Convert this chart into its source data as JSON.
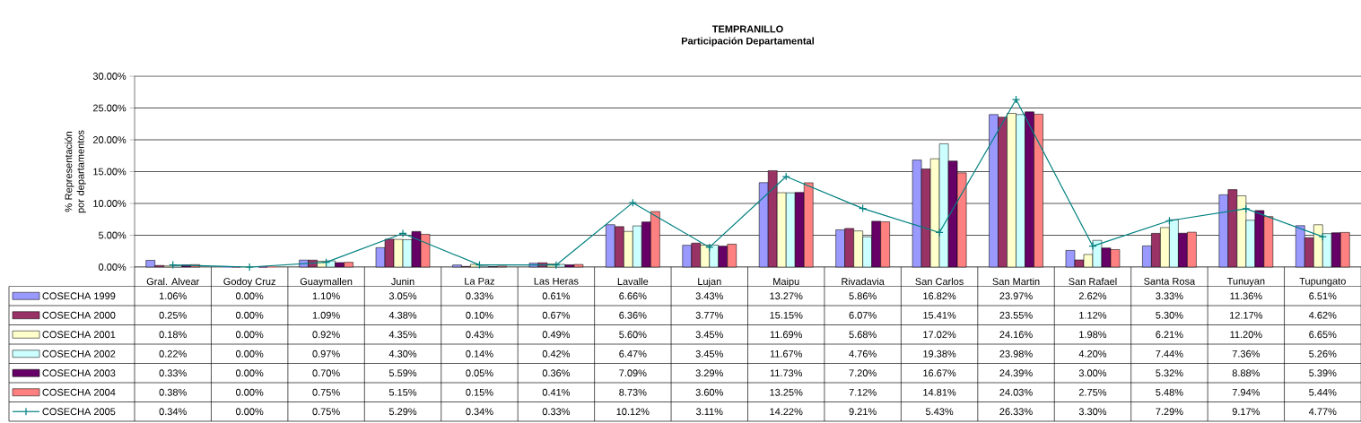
{
  "chart_data": {
    "type": "bar",
    "title": "TEMPRANILLO",
    "subtitle": "Participación Departamental",
    "ylabel": "% Representación por departamentos",
    "categories": [
      "Gral. Alvear",
      "Godoy Cruz",
      "Guaymallen",
      "Junin",
      "La Paz",
      "Las Heras",
      "Lavalle",
      "Lujan",
      "Maipu",
      "Rivadavia",
      "San Carlos",
      "San Martin",
      "San Rafael",
      "Santa Rosa",
      "Tunuyan",
      "Tupungato"
    ],
    "ylim": [
      0,
      30
    ],
    "yticks": [
      {
        "value": 0,
        "label": "0.00%"
      },
      {
        "value": 5,
        "label": "5.00%"
      },
      {
        "value": 10,
        "label": "10.00%"
      },
      {
        "value": 15,
        "label": "15.00%"
      },
      {
        "value": 20,
        "label": "20.00%"
      },
      {
        "value": 25,
        "label": "25.00%"
      },
      {
        "value": 30,
        "label": "30.00%"
      }
    ],
    "grid": "y",
    "legend": "bottom left",
    "series": [
      {
        "name": "COSECHA 1999",
        "color": "#9999ff",
        "values": [
          1.06,
          0.0,
          1.1,
          3.05,
          0.33,
          0.61,
          6.66,
          3.43,
          13.27,
          5.86,
          16.82,
          23.97,
          2.62,
          3.33,
          11.36,
          6.51
        ],
        "value_labels": [
          "1.06%",
          "0.00%",
          "1.10%",
          "3.05%",
          "0.33%",
          "0.61%",
          "6.66%",
          "3.43%",
          "13.27%",
          "5.86%",
          "16.82%",
          "23.97%",
          "2.62%",
          "3.33%",
          "11.36%",
          "6.51%"
        ]
      },
      {
        "name": "COSECHA 2000",
        "color": "#993366",
        "values": [
          0.25,
          0.0,
          1.09,
          4.38,
          0.1,
          0.67,
          6.36,
          3.77,
          15.15,
          6.07,
          15.41,
          23.55,
          1.12,
          5.3,
          12.17,
          4.62
        ],
        "value_labels": [
          "0.25%",
          "0.00%",
          "1.09%",
          "4.38%",
          "0.10%",
          "0.67%",
          "6.36%",
          "3.77%",
          "15.15%",
          "6.07%",
          "15.41%",
          "23.55%",
          "1.12%",
          "5.30%",
          "12.17%",
          "4.62%"
        ]
      },
      {
        "name": "COSECHA 2001",
        "color": "#ffffcc",
        "values": [
          0.18,
          0.0,
          0.92,
          4.35,
          0.43,
          0.49,
          5.6,
          3.45,
          11.69,
          5.68,
          17.02,
          24.16,
          1.98,
          6.21,
          11.2,
          6.65
        ],
        "value_labels": [
          "0.18%",
          "0.00%",
          "0.92%",
          "4.35%",
          "0.43%",
          "0.49%",
          "5.60%",
          "3.45%",
          "11.69%",
          "5.68%",
          "17.02%",
          "24.16%",
          "1.98%",
          "6.21%",
          "11.20%",
          "6.65%"
        ]
      },
      {
        "name": "COSECHA 2002",
        "color": "#ccffff",
        "values": [
          0.22,
          0.0,
          0.97,
          4.3,
          0.14,
          0.42,
          6.47,
          3.45,
          11.67,
          4.76,
          19.38,
          23.98,
          4.2,
          7.44,
          7.36,
          5.26
        ],
        "value_labels": [
          "0.22%",
          "0.00%",
          "0.97%",
          "4.30%",
          "0.14%",
          "0.42%",
          "6.47%",
          "3.45%",
          "11.67%",
          "4.76%",
          "19.38%",
          "23.98%",
          "4.20%",
          "7.44%",
          "7.36%",
          "5.26%"
        ]
      },
      {
        "name": "COSECHA 2003",
        "color": "#660066",
        "values": [
          0.33,
          0.0,
          0.7,
          5.59,
          0.05,
          0.36,
          7.09,
          3.29,
          11.73,
          7.2,
          16.67,
          24.39,
          3.0,
          5.32,
          8.88,
          5.39
        ],
        "value_labels": [
          "0.33%",
          "0.00%",
          "0.70%",
          "5.59%",
          "0.05%",
          "0.36%",
          "7.09%",
          "3.29%",
          "11.73%",
          "7.20%",
          "16.67%",
          "24.39%",
          "3.00%",
          "5.32%",
          "8.88%",
          "5.39%"
        ]
      },
      {
        "name": "COSECHA 2004",
        "color": "#ff8080",
        "values": [
          0.38,
          0.0,
          0.75,
          5.15,
          0.15,
          0.41,
          8.73,
          3.6,
          13.25,
          7.12,
          14.81,
          24.03,
          2.75,
          5.48,
          7.94,
          5.44
        ],
        "value_labels": [
          "0.38%",
          "0.00%",
          "0.75%",
          "5.15%",
          "0.15%",
          "0.41%",
          "8.73%",
          "3.60%",
          "13.25%",
          "7.12%",
          "14.81%",
          "24.03%",
          "2.75%",
          "5.48%",
          "7.94%",
          "5.44%"
        ]
      },
      {
        "name": "COSECHA 2005",
        "type": "line",
        "marker": "cross",
        "color": "#008080",
        "values": [
          0.34,
          0.0,
          0.75,
          5.29,
          0.34,
          0.33,
          10.12,
          3.11,
          14.22,
          9.21,
          5.43,
          26.33,
          3.3,
          7.29,
          9.17,
          4.77
        ],
        "value_labels": [
          "0.34%",
          "0.00%",
          "0.75%",
          "5.29%",
          "0.34%",
          "0.33%",
          "10.12%",
          "3.11%",
          "14.22%",
          "9.21%",
          "5.43%",
          "26.33%",
          "3.30%",
          "7.29%",
          "9.17%",
          "4.77%"
        ]
      }
    ]
  }
}
